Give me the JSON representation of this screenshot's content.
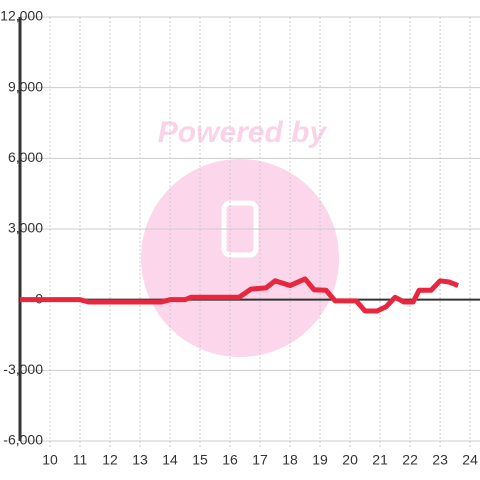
{
  "chart_data": {
    "type": "line",
    "watermark": "Powered by",
    "x": [
      9,
      11,
      11.3,
      13.7,
      14,
      14.5,
      14.7,
      16.3,
      16.7,
      17.2,
      17.5,
      18,
      18.5,
      18.8,
      19.2,
      19.5,
      20.2,
      20.5,
      20.9,
      21.2,
      21.5,
      21.8,
      22.1,
      22.3,
      22.7,
      23,
      23.3,
      23.6
    ],
    "series": [
      {
        "color": "#e8263e",
        "values": [
          0,
          0,
          -100,
          -100,
          0,
          0,
          100,
          100,
          450,
          500,
          800,
          600,
          880,
          420,
          400,
          -50,
          -50,
          -480,
          -480,
          -300,
          100,
          -100,
          -100,
          400,
          400,
          800,
          750,
          600
        ]
      }
    ],
    "xlim": [
      9,
      24.33
    ],
    "xticks": [
      10,
      11,
      12,
      13,
      14,
      15,
      16,
      17,
      18,
      19,
      20,
      21,
      22,
      23,
      24
    ],
    "ylim": [
      -6000,
      12000
    ],
    "yticks": [
      {
        "value": -6000,
        "label": "-6,000"
      },
      {
        "value": -3000,
        "label": "-3,000"
      },
      0,
      {
        "value": 3000,
        "label": "3,000"
      },
      {
        "value": 6000,
        "label": "6,000"
      },
      {
        "value": 9000,
        "label": "9,000"
      },
      {
        "value": 12000,
        "label": "12,000"
      }
    ],
    "grid": true
  }
}
